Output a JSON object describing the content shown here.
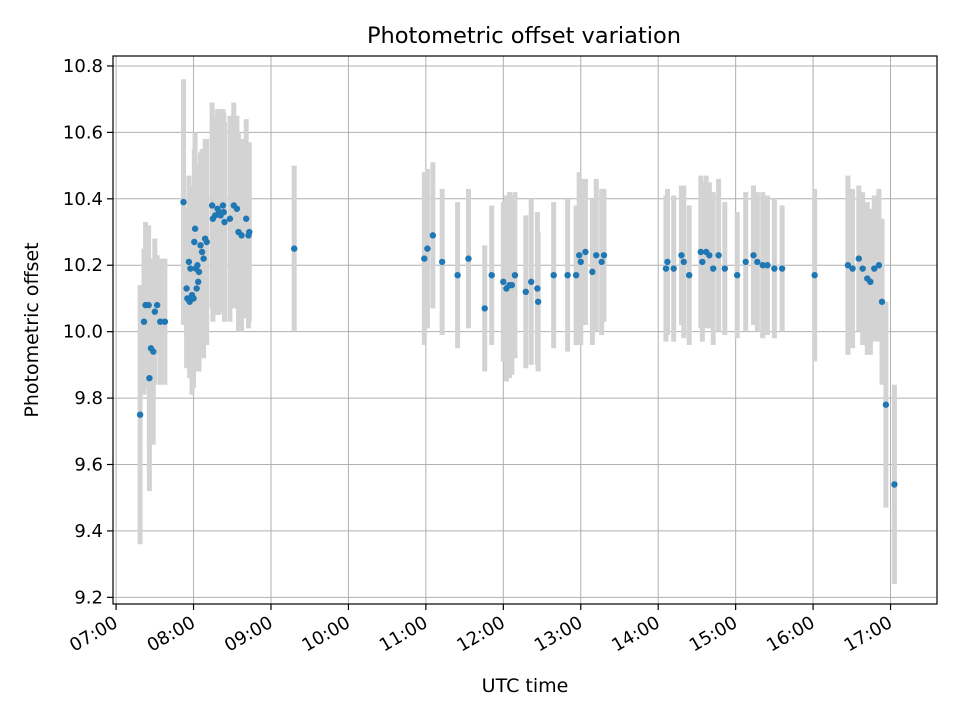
{
  "chart_data": {
    "type": "scatter",
    "title": "Photometric offset variation",
    "xlabel": "UTC time",
    "ylabel": "Photometric offset",
    "x_unit": "hours",
    "xlim": [
      6.96,
      17.6
    ],
    "ylim": [
      9.18,
      10.83
    ],
    "x_ticks": [
      {
        "value": 7,
        "label": "07:00"
      },
      {
        "value": 8,
        "label": "08:00"
      },
      {
        "value": 9,
        "label": "09:00"
      },
      {
        "value": 10,
        "label": "10:00"
      },
      {
        "value": 11,
        "label": "11:00"
      },
      {
        "value": 12,
        "label": "12:00"
      },
      {
        "value": 13,
        "label": "13:00"
      },
      {
        "value": 14,
        "label": "14:00"
      },
      {
        "value": 15,
        "label": "15:00"
      },
      {
        "value": 16,
        "label": "16:00"
      },
      {
        "value": 17,
        "label": "17:00"
      }
    ],
    "y_ticks": [
      {
        "value": 9.2,
        "label": "9.2"
      },
      {
        "value": 9.4,
        "label": "9.4"
      },
      {
        "value": 9.6,
        "label": "9.6"
      },
      {
        "value": 9.8,
        "label": "9.8"
      },
      {
        "value": 10.0,
        "label": "10.0"
      },
      {
        "value": 10.2,
        "label": "10.2"
      },
      {
        "value": 10.4,
        "label": "10.4"
      },
      {
        "value": 10.6,
        "label": "10.6"
      },
      {
        "value": 10.8,
        "label": "10.8"
      }
    ],
    "grid": true,
    "colors": {
      "marker": "#1f77b4",
      "errorbar": "#d3d3d3",
      "grid": "#b0b0b0"
    },
    "points": [
      [
        7.31,
        9.75,
        0.39
      ],
      [
        7.36,
        10.03,
        0.22
      ],
      [
        7.38,
        10.08,
        0.25
      ],
      [
        7.42,
        10.08,
        0.24
      ],
      [
        7.43,
        9.86,
        0.34
      ],
      [
        7.45,
        9.95,
        0.2
      ],
      [
        7.48,
        9.94,
        0.28
      ],
      [
        7.5,
        10.06,
        0.22
      ],
      [
        7.53,
        10.08,
        0.15
      ],
      [
        7.57,
        10.03,
        0.19
      ],
      [
        7.63,
        10.03,
        0.19
      ],
      [
        7.87,
        10.39,
        0.37
      ],
      [
        7.91,
        10.13,
        0.24
      ],
      [
        7.92,
        10.1,
        0.2
      ],
      [
        7.94,
        10.21,
        0.26
      ],
      [
        7.95,
        10.09,
        0.23
      ],
      [
        7.96,
        10.19,
        0.25
      ],
      [
        7.98,
        10.11,
        0.3
      ],
      [
        8.0,
        10.1,
        0.27
      ],
      [
        8.01,
        10.27,
        0.28
      ],
      [
        8.02,
        10.31,
        0.29
      ],
      [
        8.03,
        10.19,
        0.3
      ],
      [
        8.04,
        10.13,
        0.25
      ],
      [
        8.05,
        10.2,
        0.3
      ],
      [
        8.06,
        10.15,
        0.26
      ],
      [
        8.07,
        10.18,
        0.3
      ],
      [
        8.09,
        10.26,
        0.28
      ],
      [
        8.11,
        10.24,
        0.31
      ],
      [
        8.13,
        10.22,
        0.3
      ],
      [
        8.15,
        10.28,
        0.3
      ],
      [
        8.17,
        10.27,
        0.31
      ],
      [
        8.24,
        10.38,
        0.31
      ],
      [
        8.25,
        10.34,
        0.31
      ],
      [
        8.28,
        10.35,
        0.3
      ],
      [
        8.31,
        10.37,
        0.3
      ],
      [
        8.33,
        10.36,
        0.31
      ],
      [
        8.35,
        10.35,
        0.29
      ],
      [
        8.38,
        10.38,
        0.29
      ],
      [
        8.39,
        10.36,
        0.3
      ],
      [
        8.4,
        10.33,
        0.3
      ],
      [
        8.47,
        10.34,
        0.31
      ],
      [
        8.52,
        10.38,
        0.31
      ],
      [
        8.56,
        10.37,
        0.28
      ],
      [
        8.58,
        10.3,
        0.3
      ],
      [
        8.62,
        10.29,
        0.29
      ],
      [
        8.68,
        10.34,
        0.3
      ],
      [
        8.71,
        10.29,
        0.28
      ],
      [
        8.72,
        10.3,
        0.27
      ],
      [
        9.3,
        10.25,
        0.25
      ],
      [
        10.98,
        10.22,
        0.26
      ],
      [
        11.02,
        10.25,
        0.24
      ],
      [
        11.09,
        10.29,
        0.22
      ],
      [
        11.21,
        10.21,
        0.22
      ],
      [
        11.41,
        10.17,
        0.22
      ],
      [
        11.55,
        10.22,
        0.21
      ],
      [
        11.76,
        10.07,
        0.19
      ],
      [
        11.85,
        10.17,
        0.21
      ],
      [
        12.0,
        10.15,
        0.24
      ],
      [
        12.04,
        10.13,
        0.28
      ],
      [
        12.08,
        10.14,
        0.28
      ],
      [
        12.11,
        10.14,
        0.27
      ],
      [
        12.15,
        10.17,
        0.25
      ],
      [
        12.29,
        10.12,
        0.23
      ],
      [
        12.36,
        10.15,
        0.25
      ],
      [
        12.44,
        10.13,
        0.23
      ],
      [
        12.45,
        10.09,
        0.21
      ],
      [
        12.65,
        10.17,
        0.22
      ],
      [
        12.83,
        10.17,
        0.23
      ],
      [
        12.94,
        10.17,
        0.21
      ],
      [
        12.98,
        10.23,
        0.25
      ],
      [
        13.0,
        10.21,
        0.25
      ],
      [
        13.06,
        10.24,
        0.22
      ],
      [
        13.15,
        10.18,
        0.22
      ],
      [
        13.2,
        10.23,
        0.23
      ],
      [
        13.27,
        10.21,
        0.22
      ],
      [
        13.3,
        10.23,
        0.2
      ],
      [
        14.1,
        10.19,
        0.22
      ],
      [
        14.12,
        10.21,
        0.22
      ],
      [
        14.2,
        10.19,
        0.22
      ],
      [
        14.3,
        10.23,
        0.21
      ],
      [
        14.33,
        10.21,
        0.23
      ],
      [
        14.4,
        10.17,
        0.21
      ],
      [
        14.55,
        10.24,
        0.23
      ],
      [
        14.57,
        10.21,
        0.24
      ],
      [
        14.62,
        10.24,
        0.23
      ],
      [
        14.66,
        10.23,
        0.22
      ],
      [
        14.71,
        10.19,
        0.23
      ],
      [
        14.78,
        10.23,
        0.23
      ],
      [
        14.86,
        10.19,
        0.2
      ],
      [
        15.02,
        10.17,
        0.19
      ],
      [
        15.13,
        10.21,
        0.21
      ],
      [
        15.23,
        10.23,
        0.21
      ],
      [
        15.28,
        10.21,
        0.21
      ],
      [
        15.35,
        10.2,
        0.22
      ],
      [
        15.41,
        10.2,
        0.21
      ],
      [
        15.5,
        10.19,
        0.21
      ],
      [
        15.6,
        10.19,
        0.19
      ],
      [
        16.02,
        10.17,
        0.26
      ],
      [
        16.45,
        10.2,
        0.27
      ],
      [
        16.51,
        10.19,
        0.24
      ],
      [
        16.59,
        10.22,
        0.22
      ],
      [
        16.64,
        10.19,
        0.23
      ],
      [
        16.7,
        10.16,
        0.23
      ],
      [
        16.74,
        10.15,
        0.22
      ],
      [
        16.79,
        10.19,
        0.22
      ],
      [
        16.85,
        10.2,
        0.23
      ],
      [
        16.89,
        10.09,
        0.25
      ],
      [
        16.94,
        9.78,
        0.31
      ],
      [
        17.05,
        9.54,
        0.3
      ]
    ]
  }
}
